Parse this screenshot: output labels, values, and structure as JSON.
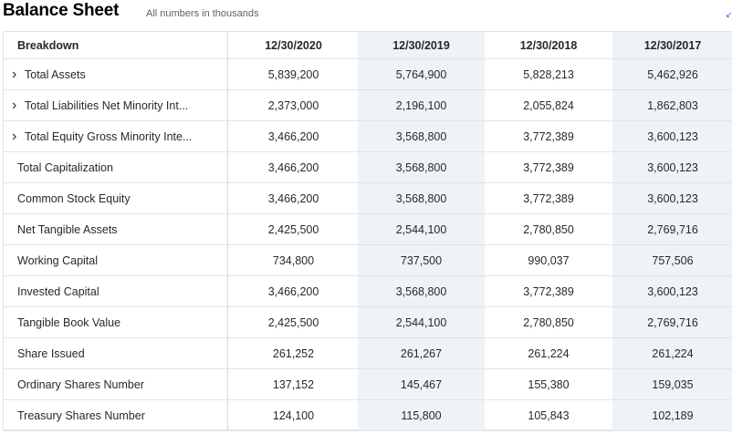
{
  "header": {
    "title": "Balance Sheet",
    "subtitle": "All numbers in thousands",
    "expand_icon": "expand-icon"
  },
  "table": {
    "breakdown_label": "Breakdown",
    "columns": [
      "12/30/2020",
      "12/30/2019",
      "12/30/2018",
      "12/30/2017"
    ],
    "rows": [
      {
        "label": "Total Assets",
        "expandable": true,
        "values": [
          "5,839,200",
          "5,764,900",
          "5,828,213",
          "5,462,926"
        ]
      },
      {
        "label": "Total Liabilities Net Minority Int...",
        "expandable": true,
        "values": [
          "2,373,000",
          "2,196,100",
          "2,055,824",
          "1,862,803"
        ]
      },
      {
        "label": "Total Equity Gross Minority Inte...",
        "expandable": true,
        "values": [
          "3,466,200",
          "3,568,800",
          "3,772,389",
          "3,600,123"
        ]
      },
      {
        "label": "Total Capitalization",
        "expandable": false,
        "values": [
          "3,466,200",
          "3,568,800",
          "3,772,389",
          "3,600,123"
        ]
      },
      {
        "label": "Common Stock Equity",
        "expandable": false,
        "values": [
          "3,466,200",
          "3,568,800",
          "3,772,389",
          "3,600,123"
        ]
      },
      {
        "label": "Net Tangible Assets",
        "expandable": false,
        "values": [
          "2,425,500",
          "2,544,100",
          "2,780,850",
          "2,769,716"
        ]
      },
      {
        "label": "Working Capital",
        "expandable": false,
        "values": [
          "734,800",
          "737,500",
          "990,037",
          "757,506"
        ]
      },
      {
        "label": "Invested Capital",
        "expandable": false,
        "values": [
          "3,466,200",
          "3,568,800",
          "3,772,389",
          "3,600,123"
        ]
      },
      {
        "label": "Tangible Book Value",
        "expandable": false,
        "values": [
          "2,425,500",
          "2,544,100",
          "2,780,850",
          "2,769,716"
        ]
      },
      {
        "label": "Share Issued",
        "expandable": false,
        "values": [
          "261,252",
          "261,267",
          "261,224",
          "261,224"
        ]
      },
      {
        "label": "Ordinary Shares Number",
        "expandable": false,
        "values": [
          "137,152",
          "145,467",
          "155,380",
          "159,035"
        ]
      },
      {
        "label": "Treasury Shares Number",
        "expandable": false,
        "values": [
          "124,100",
          "115,800",
          "105,843",
          "102,189"
        ]
      }
    ]
  }
}
